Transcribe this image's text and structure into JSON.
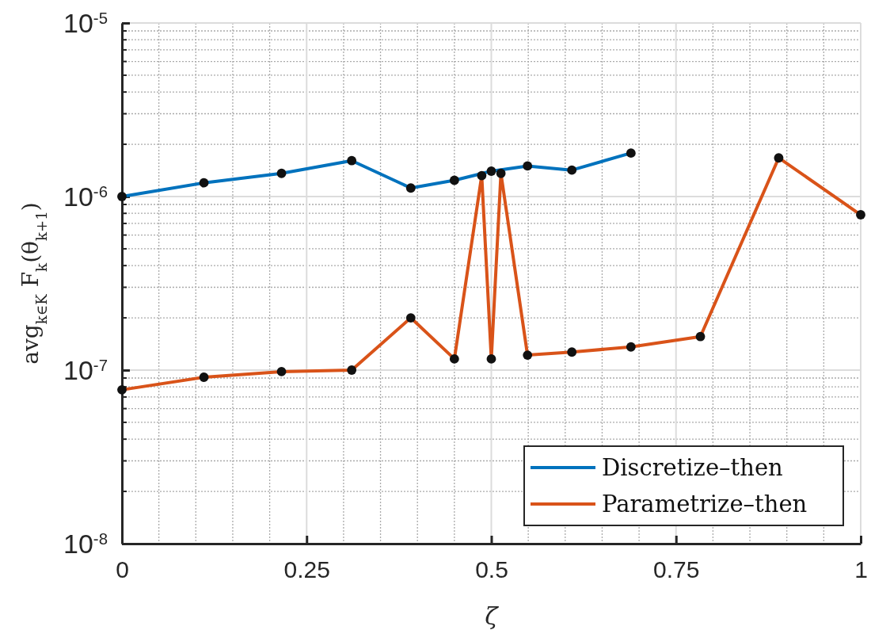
{
  "chart_data": {
    "type": "line",
    "xlabel": "ζ",
    "ylabel": "avg$_{k∈K}$ F$_{k}$(θ$_{k+1}$)",
    "log": "y",
    "grid": true,
    "legend": "bottom right",
    "marker": "circle",
    "line_style": "solid",
    "xlim": [
      0,
      1
    ],
    "xticks": [
      0,
      0.25,
      0.5,
      0.75,
      1
    ],
    "ylim": [
      1e-08,
      1e-05
    ],
    "yticks": [
      {
        "value": 1e-08,
        "label": "10$^{-8}$"
      },
      {
        "value": 1e-07,
        "label": "10$^{-7}$"
      },
      {
        "value": 1e-06,
        "label": "10$^{-6}$"
      },
      {
        "value": 1e-05,
        "label": "10$^{-5}$"
      }
    ],
    "series": [
      {
        "name": "Discretize–then",
        "color": "#0072bd",
        "x": [
          0,
          0.111,
          0.216,
          0.311,
          0.391,
          0.45,
          0.5,
          0.549,
          0.609,
          0.689
        ],
        "values": [
          1e-06,
          1.2e-06,
          1.36e-06,
          1.61e-06,
          1.12e-06,
          1.24e-06,
          1.4e-06,
          1.5e-06,
          1.42e-06,
          1.78e-06
        ]
      },
      {
        "name": "Parametrize–then",
        "color": "#d95319",
        "x": [
          0,
          0.111,
          0.216,
          0.311,
          0.391,
          0.45,
          0.487,
          0.5,
          0.513,
          0.549,
          0.609,
          0.689,
          0.783,
          0.889,
          1
        ],
        "values": [
          7.7e-08,
          9.1e-08,
          9.8e-08,
          1e-07,
          2e-07,
          1.16e-07,
          1.32e-06,
          1.16e-07,
          1.36e-06,
          1.22e-07,
          1.27e-07,
          1.36e-07,
          1.56e-07,
          1.67e-06,
          7.85e-07
        ]
      }
    ]
  }
}
